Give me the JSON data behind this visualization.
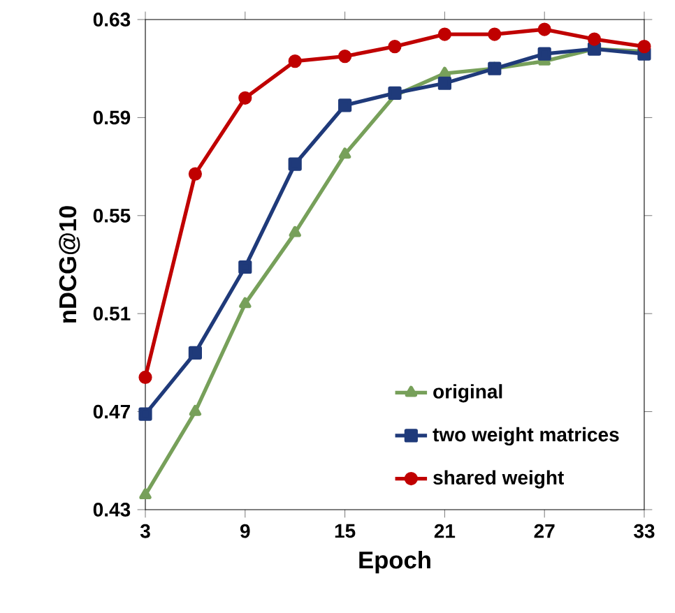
{
  "chart_data": {
    "type": "line",
    "xlabel": "Epoch",
    "ylabel": "nDCG@10",
    "x": [
      3,
      6,
      9,
      12,
      15,
      18,
      21,
      24,
      27,
      30,
      33
    ],
    "xlim": [
      3,
      33
    ],
    "xticks": [
      3,
      9,
      15,
      21,
      27,
      33
    ],
    "ylim": [
      0.43,
      0.63
    ],
    "yticks": [
      0.43,
      0.47,
      0.51,
      0.55,
      0.59,
      0.63
    ],
    "legend": "bottom right",
    "grid": false,
    "line_style": "solid",
    "series": [
      {
        "name": "original",
        "color": "#77a05a",
        "marker": "triangle",
        "values": [
          0.436,
          0.47,
          0.514,
          0.543,
          0.575,
          0.599,
          0.608,
          0.61,
          0.613,
          0.618,
          0.617
        ]
      },
      {
        "name": "two weight matrices",
        "color": "#1f3a7a",
        "marker": "square",
        "values": [
          0.469,
          0.494,
          0.529,
          0.571,
          0.595,
          0.6,
          0.604,
          0.61,
          0.616,
          0.618,
          0.616
        ]
      },
      {
        "name": "shared weight",
        "color": "#c00000",
        "marker": "circle",
        "values": [
          0.484,
          0.567,
          0.598,
          0.613,
          0.615,
          0.619,
          0.624,
          0.624,
          0.626,
          0.622,
          0.619
        ]
      }
    ]
  }
}
